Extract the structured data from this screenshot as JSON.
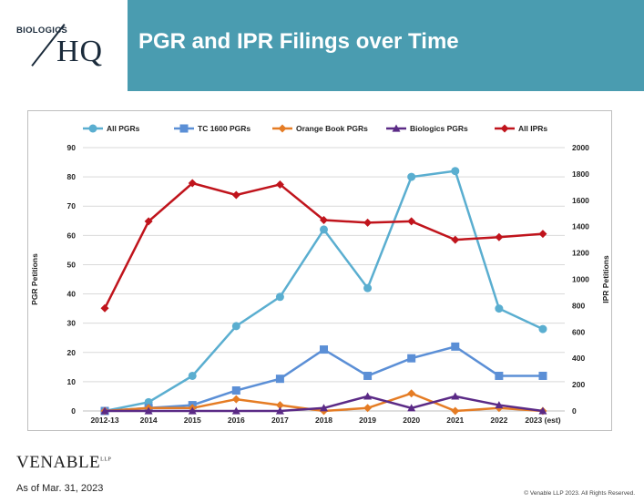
{
  "header": {
    "logo_small": "BIOLOGICS",
    "logo_big": "HQ",
    "title": "PGR and IPR Filings over Time",
    "band_color": "#4a9cb0"
  },
  "footer": {
    "brand": "VENABLE",
    "brand_suffix": "LLP",
    "as_of": "As of Mar. 31, 2023",
    "copyright": "© Venable LLP 2023. All Rights Reserved."
  },
  "chart_data": {
    "type": "line",
    "categories": [
      "2012-13",
      "2014",
      "2015",
      "2016",
      "2017",
      "2018",
      "2019",
      "2020",
      "2021",
      "2022",
      "2023 (est)"
    ],
    "ylabel": "PGR Petitions",
    "y2label": "IPR Petitions",
    "ylim": [
      0,
      90
    ],
    "y2lim": [
      0,
      2000
    ],
    "yticks": [
      0,
      10,
      20,
      30,
      40,
      50,
      60,
      70,
      80,
      90
    ],
    "y2ticks": [
      0,
      200,
      400,
      600,
      800,
      1000,
      1200,
      1400,
      1600,
      1800,
      2000
    ],
    "grid": true,
    "legend_position": "top",
    "series": [
      {
        "name": "All PGRs",
        "axis": "left",
        "color": "#5aaed0",
        "marker": "circle",
        "values": [
          0,
          3,
          12,
          29,
          39,
          62,
          42,
          80,
          82,
          35,
          28
        ]
      },
      {
        "name": "TC 1600 PGRs",
        "axis": "left",
        "color": "#5b8fd6",
        "marker": "square",
        "values": [
          0,
          1,
          2,
          7,
          11,
          21,
          12,
          18,
          22,
          12,
          12
        ]
      },
      {
        "name": "Orange Book PGRs",
        "axis": "left",
        "color": "#e57c24",
        "marker": "diamond",
        "values": [
          0,
          1,
          1,
          4,
          2,
          0,
          1,
          6,
          0,
          1,
          0
        ]
      },
      {
        "name": "Biologics PGRs",
        "axis": "left",
        "color": "#5b2a86",
        "marker": "triangle",
        "values": [
          0,
          0,
          0,
          0,
          0,
          1,
          5,
          1,
          5,
          2,
          0
        ]
      },
      {
        "name": "All IPRs",
        "axis": "right",
        "color": "#c0141c",
        "marker": "diamond",
        "values": [
          780,
          1440,
          1730,
          1640,
          1720,
          1450,
          1430,
          1440,
          1300,
          1320,
          1345
        ]
      }
    ]
  }
}
